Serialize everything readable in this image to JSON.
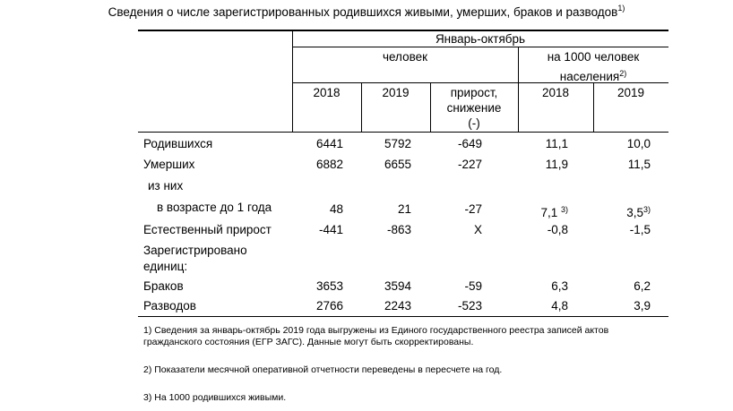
{
  "title": "Сведения о числе зарегистрированных родившихся живыми, умерших, браков и разводов",
  "title_note": "1)",
  "header": {
    "period": "Январь-октябрь",
    "group_people": "человек",
    "group_per1000_line1": "на 1000 человек",
    "group_per1000_line2": "населения",
    "group_per1000_note": "2)",
    "col_2018": "2018",
    "col_2019": "2019",
    "col_change_line1": "прирост,",
    "col_change_line2": "снижение",
    "col_change_line3": "(-)",
    "col_rate_2018": "2018",
    "col_rate_2019": "2019"
  },
  "rows": [
    {
      "label": "Родившихся",
      "v2018": "6441",
      "v2019": "5792",
      "change": "-649",
      "r2018": "11,1",
      "r2019": "10,0"
    },
    {
      "label": "Умерших",
      "v2018": "6882",
      "v2019": "6655",
      "change": "-227",
      "r2018": "11,9",
      "r2019": "11,5"
    },
    {
      "label": "из них"
    },
    {
      "label": "в возрасте до 1 года",
      "v2018": "48",
      "v2019": "21",
      "change": "-27",
      "r2018": "7,1",
      "r2018_note": "3)",
      "r2019": "3,5",
      "r2019_note": "3)"
    },
    {
      "label": "Естественный прирост",
      "v2018": "-441",
      "v2019": "-863",
      "change": "Х",
      "r2018": "-0,8",
      "r2019": "-1,5"
    },
    {
      "label_line1": "Зарегистрировано",
      "label_line2": "единиц:"
    },
    {
      "label": "Браков",
      "v2018": "3653",
      "v2019": "3594",
      "change": "-59",
      "r2018": "6,3",
      "r2019": "6,2"
    },
    {
      "label": "Разводов",
      "v2018": "2766",
      "v2019": "2243",
      "change": "-523",
      "r2018": "4,8",
      "r2019": "3,9"
    }
  ],
  "footnotes": [
    "1) Сведения за январь-октябрь 2019 года выгружены из Единого государственного реестра записей актов гражданского состояния (ЕГР ЗАГС). Данные могут быть скорректированы.",
    "2) Показатели месячной оперативной отчетности переведены в пересчете на год.",
    "3) На 1000 родившихся живыми."
  ]
}
